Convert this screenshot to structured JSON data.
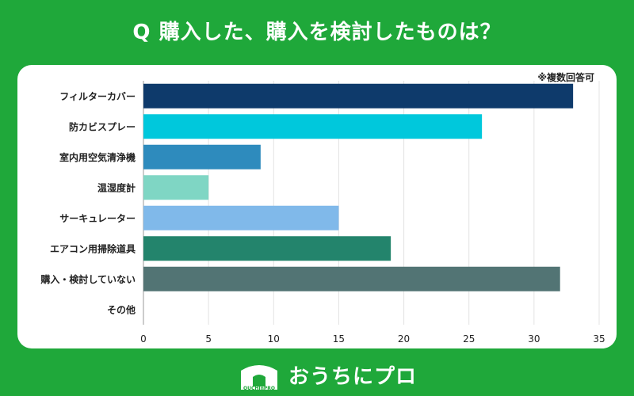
{
  "header": {
    "title": "Q 購入した、購入を検討したものは？"
  },
  "chart_data": {
    "type": "bar",
    "orientation": "horizontal",
    "title": "Q 購入した、購入を検討したものは？",
    "note": "※複数回答可",
    "categories": [
      "フィルターカバー",
      "防カビスプレー",
      "室内用空気清浄機",
      "温湿度計",
      "サーキュレーター",
      "エアコン用掃除道具",
      "購入・検討していない",
      "その他"
    ],
    "values": [
      33,
      26,
      9,
      5,
      15,
      19,
      32,
      0
    ],
    "colors": [
      "#0e3a6b",
      "#00c8dc",
      "#2e8bbd",
      "#7fd6c4",
      "#80b9ea",
      "#23846c",
      "#527474",
      "#cccccc"
    ],
    "xlim": [
      0,
      35
    ],
    "xticks": [
      0,
      5,
      10,
      15,
      20,
      25,
      30,
      35
    ],
    "grid": true,
    "xlabel": "",
    "ylabel": ""
  },
  "footer": {
    "logo_text": "おうちにプロ",
    "logo_sub": "OUCHInPRO",
    "icon": "house-icon"
  }
}
